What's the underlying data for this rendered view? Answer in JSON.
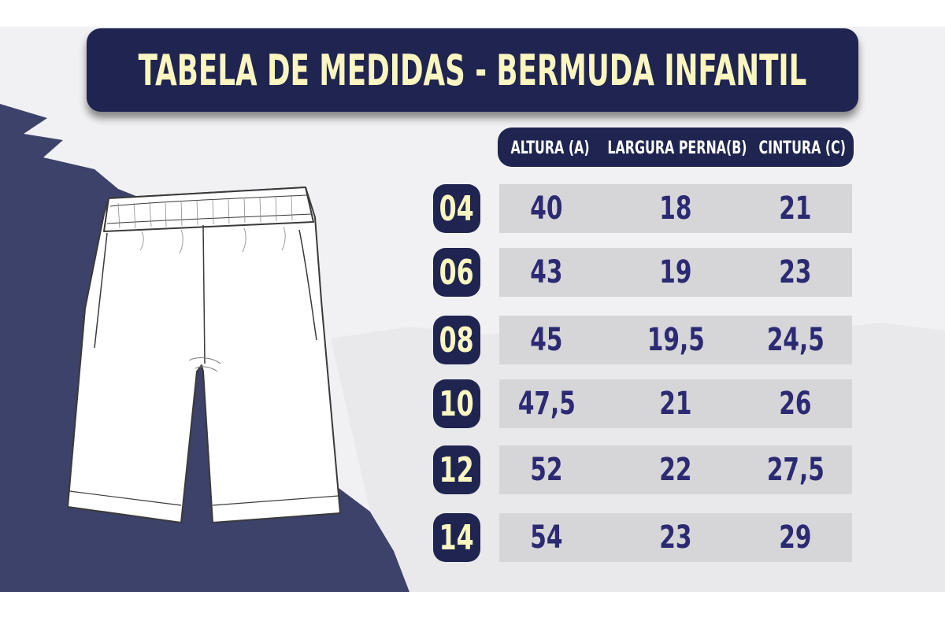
{
  "title": "TABELA DE MEDIDAS - BERMUDA INFANTIL",
  "columns": [
    "ALTURA (A)",
    "LARGURA PERNA(B)",
    "CINTURA (C)"
  ],
  "rows": [
    {
      "size": "04",
      "altura": "40",
      "largura": "18",
      "cintura": "21"
    },
    {
      "size": "06",
      "altura": "43",
      "largura": "19",
      "cintura": "23"
    },
    {
      "size": "08",
      "altura": "45",
      "largura": "19,5",
      "cintura": "24,5"
    },
    {
      "size": "10",
      "altura": "47,5",
      "largura": "21",
      "cintura": "26"
    },
    {
      "size": "12",
      "altura": "52",
      "largura": "22",
      "cintura": "27,5"
    },
    {
      "size": "14",
      "altura": "54",
      "largura": "23",
      "cintura": "29"
    }
  ],
  "colors": {
    "navy": "#1f2550",
    "title_text": "#fbf6bf",
    "value_text": "#2b2a73",
    "row_bg": "#d6d6d8"
  },
  "illustration": "shorts-illustration"
}
